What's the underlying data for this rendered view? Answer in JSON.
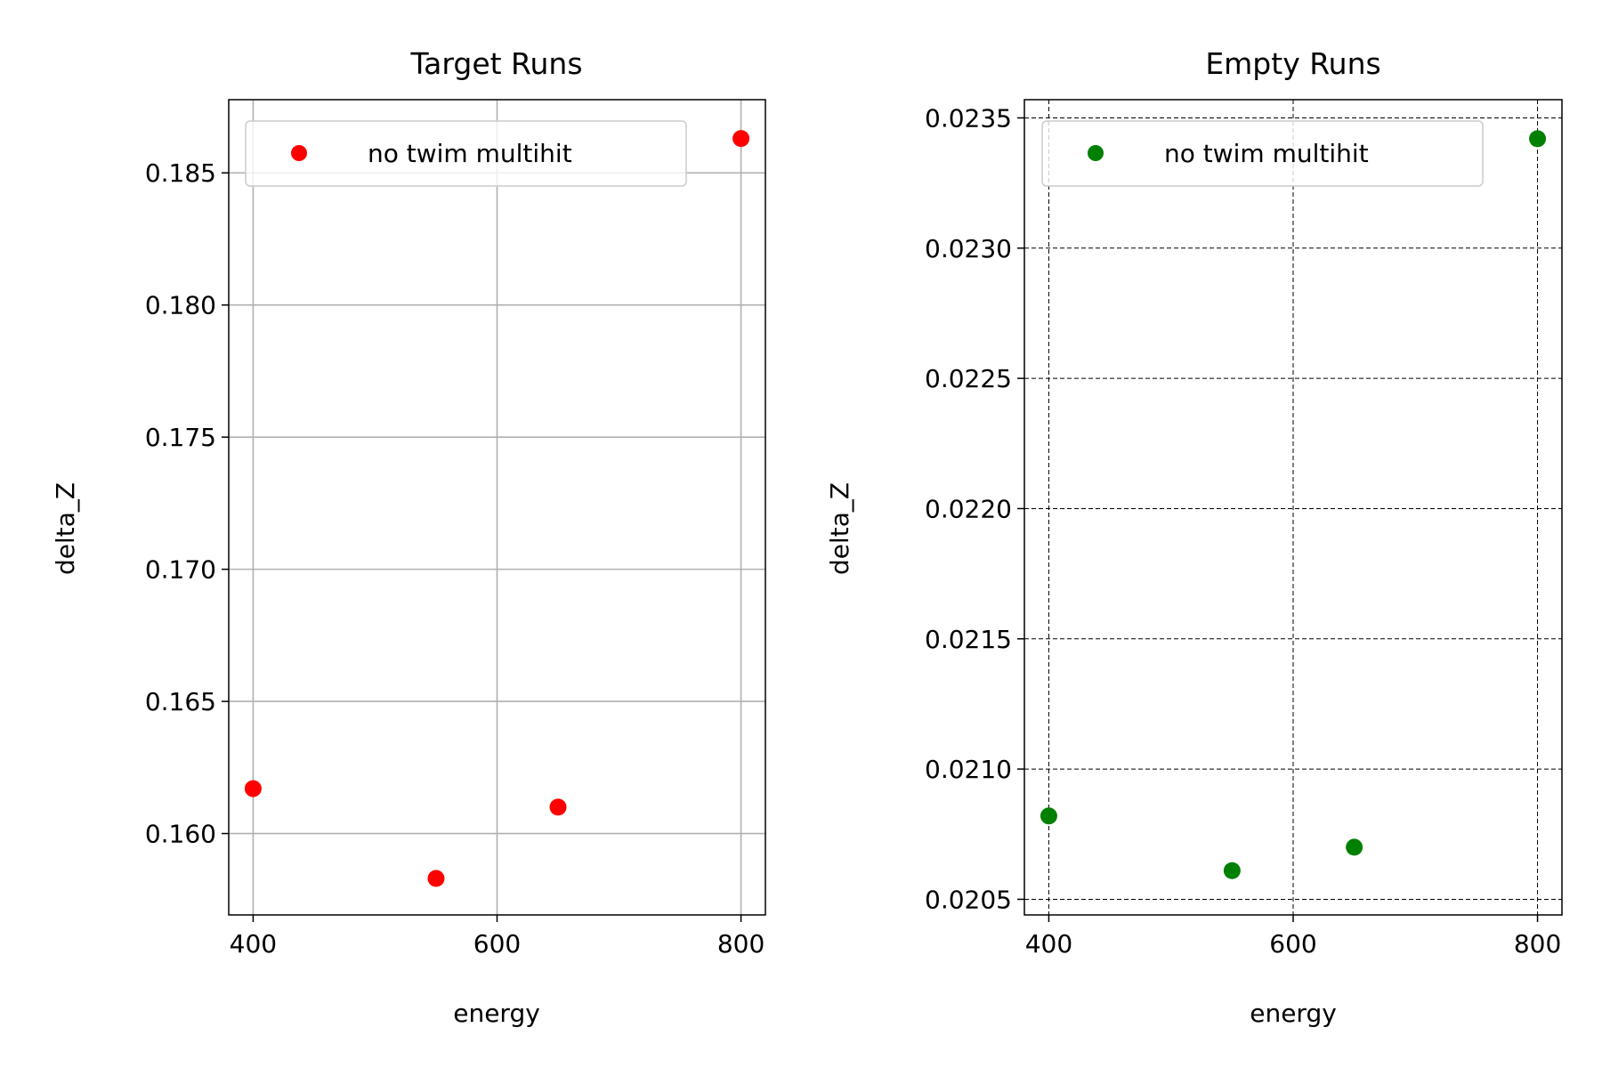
{
  "chart_data": [
    {
      "type": "scatter",
      "title": "Target Runs",
      "xlabel": "energy",
      "ylabel": "delta_Z",
      "xlim": [
        380,
        820
      ],
      "ylim": [
        0.15692,
        0.18777
      ],
      "xticks": [
        400,
        600,
        800
      ],
      "xtick_labels": [
        "400",
        "600",
        "800"
      ],
      "yticks": [
        0.16,
        0.165,
        0.17,
        0.175,
        0.18,
        0.185
      ],
      "ytick_labels": [
        "0.160",
        "0.165",
        "0.170",
        "0.175",
        "0.180",
        "0.185"
      ],
      "grid": true,
      "grid_style": "solid",
      "legend_location": "upper-left",
      "series": [
        {
          "name": "no twim multihit",
          "color": "#ff0000",
          "x": [
            400,
            550,
            650,
            800
          ],
          "y": [
            0.1617,
            0.1583,
            0.161,
            0.1863
          ]
        }
      ]
    },
    {
      "type": "scatter",
      "title": "Empty Runs",
      "xlabel": "energy",
      "ylabel": "delta_Z",
      "xlim": [
        380,
        820
      ],
      "ylim": [
        0.02044,
        0.02357
      ],
      "xticks": [
        400,
        600,
        800
      ],
      "xtick_labels": [
        "400",
        "600",
        "800"
      ],
      "yticks": [
        0.0205,
        0.021,
        0.0215,
        0.022,
        0.0225,
        0.023,
        0.0235
      ],
      "ytick_labels": [
        "0.0205",
        "0.0210",
        "0.0215",
        "0.0220",
        "0.0225",
        "0.0230",
        "0.0235"
      ],
      "grid": true,
      "grid_style": "dashed",
      "legend_location": "upper-left",
      "series": [
        {
          "name": "no twim multihit",
          "color": "#008000",
          "x": [
            400,
            550,
            650,
            800
          ],
          "y": [
            0.02082,
            0.02061,
            0.0207,
            0.02342
          ]
        }
      ]
    }
  ]
}
